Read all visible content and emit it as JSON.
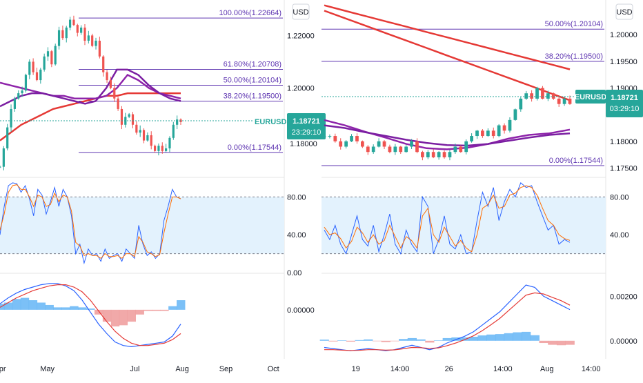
{
  "chart_data": [
    {
      "type": "line",
      "symbol": "EURUSD",
      "currency_label": "USD",
      "last_price": "1.18721",
      "countdown": "23:29:10",
      "ylim": [
        1.1665,
        1.2335
      ],
      "y_ticks": [
        "1.22000",
        "1.20000"
      ],
      "y_tick_values": [
        1.22,
        1.2
      ],
      "obscured_tick": "1.18000",
      "x_ticks": [
        "Apr",
        "May",
        "Jul",
        "Aug",
        "Sep",
        "Oct"
      ],
      "x_tick_positions": [
        0,
        13,
        37,
        50,
        62,
        75
      ],
      "fib_levels": [
        {
          "label": "100.00%(1.22664)",
          "value": 1.22664
        },
        {
          "label": "61.80%(1.20708)",
          "value": 1.20708
        },
        {
          "label": "50.00%(1.20104)",
          "value": 1.20104
        },
        {
          "label": "38.20%(1.19500)",
          "value": 1.195
        },
        {
          "label": "0.00%(1.17544)",
          "value": 1.17544
        }
      ],
      "price_series": [
        1.17,
        1.177,
        1.185,
        1.192,
        1.196,
        1.198,
        1.199,
        1.205,
        1.21,
        1.206,
        1.203,
        1.207,
        1.212,
        1.214,
        1.209,
        1.216,
        1.222,
        1.219,
        1.223,
        1.226,
        1.224,
        1.221,
        1.223,
        1.218,
        1.22,
        1.216,
        1.218,
        1.212,
        1.206,
        1.203,
        1.2,
        1.196,
        1.192,
        1.186,
        1.189,
        1.19,
        1.186,
        1.183,
        1.184,
        1.18,
        1.182,
        1.178,
        1.176,
        1.178,
        1.176,
        1.177,
        1.181,
        1.186,
        1.188,
        1.187
      ],
      "series": [
        {
          "name": "",
          "color": "#e53935",
          "values": [
            1.18,
            1.183,
            1.186,
            1.188,
            1.19,
            1.192,
            1.193,
            1.194,
            1.195,
            1.196,
            1.197,
            1.197,
            1.198,
            1.198,
            1.198,
            1.198,
            1.198,
            1.198
          ]
        },
        {
          "name": "",
          "color": "#8e24aa",
          "values": [
            1.202,
            1.201,
            1.2,
            1.199,
            1.198,
            1.197,
            1.197,
            1.196,
            1.196,
            1.196,
            1.197,
            1.2,
            1.205,
            1.203,
            1.2,
            1.198,
            1.197,
            1.196
          ]
        },
        {
          "name": "",
          "color": "#7b1fa2",
          "values": [
            1.193,
            1.195,
            1.197,
            1.198,
            1.198,
            1.197,
            1.196,
            1.195,
            1.194,
            1.195,
            1.2,
            1.207,
            1.207,
            1.205,
            1.201,
            1.198,
            1.196,
            1.195
          ]
        }
      ],
      "stoch": {
        "ticks": [
          "80.00",
          "40.00",
          "0.00"
        ],
        "tick_values": [
          80,
          40,
          0
        ],
        "band": [
          80,
          20
        ],
        "k": [
          40,
          70,
          92,
          95,
          94,
          85,
          92,
          78,
          60,
          88,
          82,
          62,
          75,
          90,
          70,
          88,
          80,
          60,
          20,
          30,
          10,
          25,
          18,
          20,
          12,
          25,
          15,
          18,
          20,
          12,
          25,
          20,
          15,
          50,
          30,
          18,
          22,
          15,
          20,
          55,
          70,
          88,
          80,
          78
        ],
        "d": [
          45,
          62,
          85,
          92,
          93,
          88,
          88,
          80,
          70,
          82,
          80,
          70,
          72,
          84,
          75,
          82,
          80,
          65,
          32,
          28,
          18,
          20,
          18,
          18,
          15,
          20,
          17,
          17,
          18,
          15,
          20,
          20,
          17,
          38,
          32,
          22,
          20,
          17,
          19,
          42,
          62,
          80,
          80,
          78
        ]
      },
      "macd": {
        "tick": "0.00000",
        "tick_value": 0,
        "ylim": [
          -0.004,
          0.003
        ],
        "macd": [
          0.0005,
          0.001,
          0.0014,
          0.0017,
          0.0019,
          0.0021,
          0.0022,
          0.0022,
          0.002,
          0.0016,
          0.0008,
          -0.0002,
          -0.0012,
          -0.002,
          -0.0027,
          -0.003,
          -0.0031,
          -0.003,
          -0.0029,
          -0.0028,
          -0.0027,
          -0.0022,
          -0.0012
        ],
        "signal": [
          0.0002,
          0.0006,
          0.001,
          0.0013,
          0.0016,
          0.0018,
          0.002,
          0.0021,
          0.0021,
          0.0019,
          0.0015,
          0.0008,
          -0.0001,
          -0.001,
          -0.0018,
          -0.0024,
          -0.0028,
          -0.003,
          -0.003,
          -0.0029,
          -0.0028,
          -0.0025,
          -0.002
        ],
        "hist": [
          0.0005,
          0.0006,
          0.0009,
          0.001,
          0.0008,
          0.0006,
          0.0004,
          0.0002,
          0.0002,
          0.0003,
          0.0002,
          0.0001,
          -0.0004,
          -0.001,
          -0.0014,
          -0.0013,
          -0.001,
          -0.0004,
          -0.0001,
          -0.0001,
          -0.0001,
          0.0003,
          0.0008
        ]
      }
    },
    {
      "type": "line",
      "symbol": "EURUSD",
      "currency_label": "USD",
      "last_price": "1.18721",
      "countdown": "03:29:10",
      "ylim": [
        1.1735,
        1.2065
      ],
      "y_ticks": [
        "1.20000",
        "1.19500",
        "1.19000",
        "1.18000",
        "1.17500"
      ],
      "y_tick_values": [
        1.2,
        1.195,
        1.19,
        1.18,
        1.175
      ],
      "x_ticks": [
        "19",
        "14:00",
        "26",
        "14:00",
        "Aug",
        "14:00"
      ],
      "x_tick_positions": [
        7,
        16,
        26,
        37,
        46,
        55
      ],
      "fib_levels": [
        {
          "label": "50.00%(1.20104)",
          "value": 1.20104
        },
        {
          "label": "38.20%(1.19500)",
          "value": 1.195
        },
        {
          "label": "0.00%(1.17544)",
          "value": 1.17544
        }
      ],
      "price_series": [
        1.181,
        1.181,
        1.18,
        1.179,
        1.18,
        1.181,
        1.18,
        1.179,
        1.178,
        1.179,
        1.18,
        1.179,
        1.178,
        1.179,
        1.178,
        1.179,
        1.18,
        1.178,
        1.177,
        1.178,
        1.177,
        1.178,
        1.177,
        1.178,
        1.179,
        1.178,
        1.18,
        1.181,
        1.182,
        1.181,
        1.182,
        1.181,
        1.183,
        1.182,
        1.184,
        1.186,
        1.188,
        1.189,
        1.188,
        1.19,
        1.188,
        1.189,
        1.188,
        1.187,
        1.188,
        1.187
      ],
      "series": [
        {
          "name": "",
          "color": "#e53935",
          "values": [
            1.2045,
            1.2031,
            1.2017,
            1.2003,
            1.1989,
            1.1975,
            1.1961,
            1.1947,
            1.1933,
            1.1919,
            1.1905,
            1.1891,
            1.1877
          ]
        },
        {
          "name": "",
          "color": "#e53935",
          "values": [
            1.2055,
            1.2045,
            1.2035,
            1.2025,
            1.2015,
            1.2005,
            1.1995,
            1.1985,
            1.1975,
            1.1965,
            1.1955,
            1.1945,
            1.1935
          ]
        },
        {
          "name": "",
          "color": "#8e24aa",
          "values": [
            1.184,
            1.183,
            1.1818,
            1.1807,
            1.1795,
            1.1787,
            1.1785,
            1.1788,
            1.1795,
            1.1805,
            1.1812,
            1.1815,
            1.1822
          ]
        },
        {
          "name": "",
          "color": "#7b1fa2",
          "values": [
            1.183,
            1.1825,
            1.1817,
            1.181,
            1.1803,
            1.1797,
            1.1793,
            1.1792,
            1.1795,
            1.1801,
            1.1807,
            1.1812,
            1.1815
          ]
        }
      ],
      "stoch": {
        "ticks": [
          "80.00",
          "40.00"
        ],
        "tick_values": [
          80,
          40
        ],
        "band": [
          80,
          20
        ],
        "k": [
          45,
          35,
          50,
          30,
          20,
          40,
          60,
          35,
          28,
          50,
          22,
          40,
          62,
          30,
          20,
          45,
          30,
          22,
          80,
          70,
          20,
          35,
          60,
          30,
          25,
          40,
          20,
          22,
          55,
          85,
          70,
          90,
          55,
          75,
          88,
          80,
          95,
          90,
          92,
          75,
          60,
          45,
          50,
          30,
          35,
          32
        ],
        "d": [
          48,
          40,
          42,
          36,
          26,
          33,
          48,
          42,
          32,
          40,
          30,
          34,
          50,
          38,
          26,
          38,
          34,
          26,
          60,
          68,
          40,
          32,
          48,
          38,
          28,
          34,
          26,
          22,
          40,
          68,
          72,
          82,
          68,
          70,
          82,
          84,
          90,
          92,
          90,
          82,
          68,
          55,
          50,
          40,
          36,
          34
        ]
      },
      "macd": {
        "tick1": "0.00200",
        "tick2": "0.00000",
        "tick_values": [
          0.002,
          0.0
        ],
        "ylim": [
          -0.00075,
          0.003
        ],
        "macd": [
          -0.0003,
          -0.00035,
          -0.0004,
          -0.00045,
          -0.0004,
          -0.00035,
          -0.0004,
          -0.00045,
          -0.0004,
          -0.0003,
          -0.0002,
          -0.0003,
          -0.0004,
          -0.0003,
          -0.0001,
          5e-05,
          0.0002,
          0.0004,
          0.0007,
          0.001,
          0.0013,
          0.0017,
          0.0021,
          0.0025,
          0.0024,
          0.002,
          0.0018,
          0.0016,
          0.0014
        ],
        "signal": [
          -0.0004,
          -0.0004,
          -0.00042,
          -0.00044,
          -0.00043,
          -0.0004,
          -0.0004,
          -0.00042,
          -0.00041,
          -0.00036,
          -0.0003,
          -0.00031,
          -0.00034,
          -0.00032,
          -0.00022,
          -0.0001,
          5e-05,
          0.00022,
          0.00045,
          0.00072,
          0.001,
          0.00135,
          0.0017,
          0.00205,
          0.00215,
          0.0021,
          0.00195,
          0.0018,
          0.0016
        ],
        "hist": [
          5e-05,
          -3e-05,
          2e-05,
          -4e-05,
          3e-05,
          6e-05,
          -2e-05,
          -6e-05,
          -2e-05,
          8e-05,
          0.00012,
          6e-05,
          -8e-05,
          2e-05,
          0.00012,
          0.00015,
          0.00015,
          0.00018,
          0.00024,
          0.00028,
          0.0003,
          0.00034,
          0.00038,
          0.0004,
          0.00025,
          -0.0001,
          -0.00018,
          -0.0002,
          -0.00018
        ]
      }
    }
  ]
}
